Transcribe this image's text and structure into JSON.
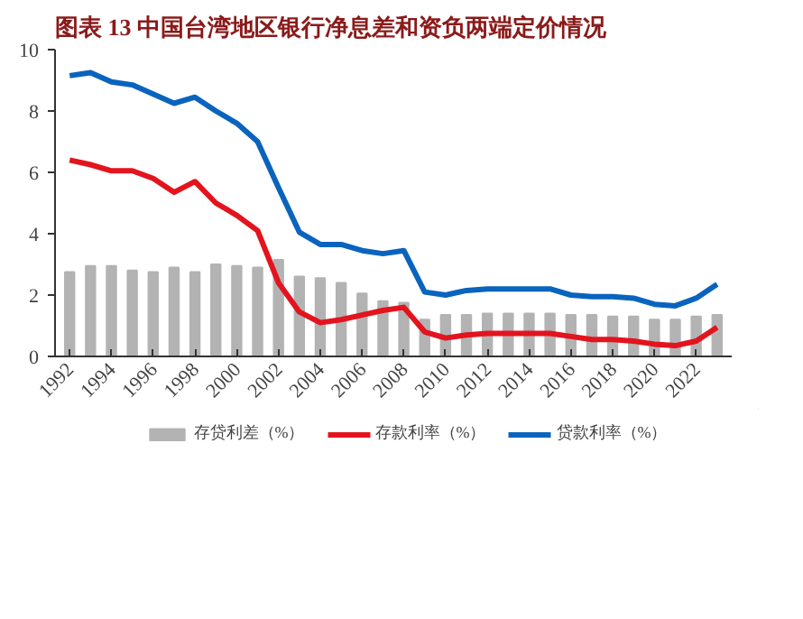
{
  "chart_data": {
    "type": "line",
    "title": "图表 13 中国台湾地区银行净息差和资负两端定价情况",
    "x": [
      1992,
      1993,
      1994,
      1995,
      1996,
      1997,
      1998,
      1999,
      2000,
      2001,
      2002,
      2003,
      2004,
      2005,
      2006,
      2007,
      2008,
      2009,
      2010,
      2011,
      2012,
      2013,
      2014,
      2015,
      2016,
      2017,
      2018,
      2019,
      2020,
      2021,
      2022,
      2023
    ],
    "series": [
      {
        "name": "存贷利差（%）",
        "type": "bar",
        "color": "#b3b3b3",
        "values": [
          2.75,
          2.95,
          2.95,
          2.8,
          2.75,
          2.9,
          2.75,
          3.0,
          2.95,
          2.9,
          3.15,
          2.6,
          2.55,
          2.4,
          2.05,
          1.8,
          1.75,
          1.2,
          1.35,
          1.35,
          1.4,
          1.4,
          1.4,
          1.4,
          1.35,
          1.35,
          1.3,
          1.3,
          1.2,
          1.2,
          1.3,
          1.35
        ]
      },
      {
        "name": "存款利率（%）",
        "color": "#e3141e",
        "values": [
          6.4,
          6.25,
          6.05,
          6.05,
          5.8,
          5.35,
          5.7,
          5.0,
          4.6,
          4.1,
          2.4,
          1.45,
          1.1,
          1.2,
          1.35,
          1.5,
          1.6,
          0.8,
          0.6,
          0.7,
          0.75,
          0.75,
          0.75,
          0.75,
          0.65,
          0.55,
          0.55,
          0.5,
          0.4,
          0.35,
          0.5,
          0.95
        ]
      },
      {
        "name": "贷款利率（%）",
        "color": "#0a64be",
        "values": [
          9.15,
          9.25,
          8.95,
          8.85,
          8.55,
          8.25,
          8.45,
          8.0,
          7.6,
          7.0,
          5.5,
          4.05,
          3.65,
          3.65,
          3.45,
          3.35,
          3.45,
          2.1,
          2.0,
          2.15,
          2.2,
          2.2,
          2.2,
          2.2,
          2.0,
          1.95,
          1.95,
          1.9,
          1.7,
          1.65,
          1.9,
          2.35
        ]
      }
    ],
    "xlim": [
      1991.3,
      2023.7
    ],
    "xticks": [
      1992,
      1994,
      1996,
      1998,
      2000,
      2002,
      2004,
      2006,
      2008,
      2010,
      2012,
      2014,
      2016,
      2018,
      2020,
      2022
    ],
    "ylim": [
      0,
      10
    ],
    "yticks": [
      0,
      2,
      4,
      6,
      8,
      10
    ],
    "grid": false,
    "legend": "bottom",
    "line_style": "solid",
    "marker": "none"
  }
}
